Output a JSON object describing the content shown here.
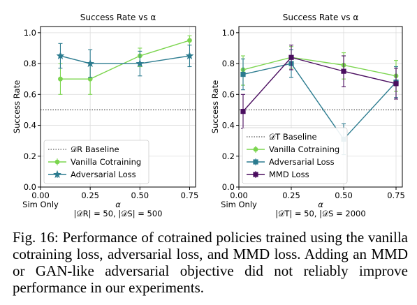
{
  "colors": {
    "vanilla": "#7bd54e",
    "adversarial": "#2b7b8f",
    "mmd": "#4a0d5f",
    "baseline": "#333333",
    "grid": "#dddddd"
  },
  "chart_data": [
    {
      "type": "line",
      "title": "Success Rate vs α",
      "xlabel": "α",
      "ylabel": "Success Rate",
      "subtitle": "|𝒟R| = 50, |𝒟S| = 500",
      "x_ticks": [
        0.0,
        0.25,
        0.5,
        0.75
      ],
      "x_tick_labels": [
        "0.00",
        "0.25",
        "0.50",
        "0.75"
      ],
      "x_extra_label": "Sim Only",
      "y_ticks": [
        0.0,
        0.2,
        0.4,
        0.6,
        0.8,
        1.0
      ],
      "y_tick_labels": [
        "0.0",
        "0.2",
        "0.4",
        "0.6",
        "0.8",
        "1.0"
      ],
      "xlim": [
        0.0,
        0.78
      ],
      "ylim": [
        0.0,
        1.04
      ],
      "grid": true,
      "legend_position": "lower-left",
      "baseline": {
        "name": "𝒟R Baseline",
        "y": 0.5
      },
      "series": [
        {
          "name": "Vanilla Cotraining",
          "key": "vanilla",
          "marker": "circle",
          "x": [
            0.1,
            0.25,
            0.5,
            0.75
          ],
          "y": [
            0.7,
            0.7,
            0.85,
            0.95
          ],
          "err_low": [
            0.6,
            0.6,
            0.78,
            0.92
          ],
          "err_high": [
            0.8,
            0.8,
            0.9,
            0.98
          ]
        },
        {
          "name": "Adversarial Loss",
          "key": "adversarial",
          "marker": "star",
          "x": [
            0.1,
            0.25,
            0.5,
            0.75
          ],
          "y": [
            0.85,
            0.8,
            0.8,
            0.85
          ],
          "err_low": [
            0.77,
            0.71,
            0.72,
            0.78
          ],
          "err_high": [
            0.93,
            0.89,
            0.88,
            0.92
          ]
        }
      ]
    },
    {
      "type": "line",
      "title": "Success Rate vs α",
      "xlabel": "α",
      "ylabel": "Success Rate",
      "subtitle": "|𝒟T| = 50, |𝒟S = 2000",
      "x_ticks": [
        0.0,
        0.25,
        0.5,
        0.75
      ],
      "x_tick_labels": [
        "0.00",
        "0.25",
        "0.50",
        "0.75"
      ],
      "x_extra_label": "Sim Only",
      "y_ticks": [
        0.0,
        0.2,
        0.4,
        0.6,
        0.8,
        1.0
      ],
      "y_tick_labels": [
        "0.0",
        "0.2",
        "0.4",
        "0.6",
        "0.8",
        "1.0"
      ],
      "xlim": [
        0.0,
        0.78
      ],
      "ylim": [
        0.0,
        1.04
      ],
      "grid": true,
      "legend_position": "lower-left",
      "baseline": {
        "name": "𝒟T Baseline",
        "y": 0.5
      },
      "series": [
        {
          "name": "Vanilla Cotraining",
          "key": "vanilla",
          "marker": "circle",
          "x": [
            0.02,
            0.25,
            0.5,
            0.75
          ],
          "y": [
            0.76,
            0.84,
            0.79,
            0.72
          ],
          "err_low": [
            0.66,
            0.77,
            0.7,
            0.62
          ],
          "err_high": [
            0.85,
            0.91,
            0.87,
            0.82
          ]
        },
        {
          "name": "Adversarial Loss",
          "key": "adversarial",
          "marker": "square",
          "x": [
            0.02,
            0.25,
            0.5,
            0.75
          ],
          "y": [
            0.73,
            0.8,
            0.31,
            0.68
          ],
          "err_low": [
            0.63,
            0.71,
            0.21,
            0.58
          ],
          "err_high": [
            0.83,
            0.89,
            0.41,
            0.78
          ]
        },
        {
          "name": "MMD Loss",
          "key": "mmd",
          "marker": "square",
          "x": [
            0.02,
            0.25,
            0.5,
            0.75
          ],
          "y": [
            0.49,
            0.84,
            0.75,
            0.67
          ],
          "err_low": [
            0.38,
            0.76,
            0.65,
            0.57
          ],
          "err_high": [
            0.6,
            0.92,
            0.85,
            0.77
          ]
        }
      ]
    }
  ],
  "caption": {
    "label": "Fig. 16:",
    "text": "Performance of cotrained policies trained using the vanilla cotraining loss, adversarial loss, and MMD loss. Adding an MMD or GAN-like adversarial objective did not reliably improve performance in our experiments."
  }
}
